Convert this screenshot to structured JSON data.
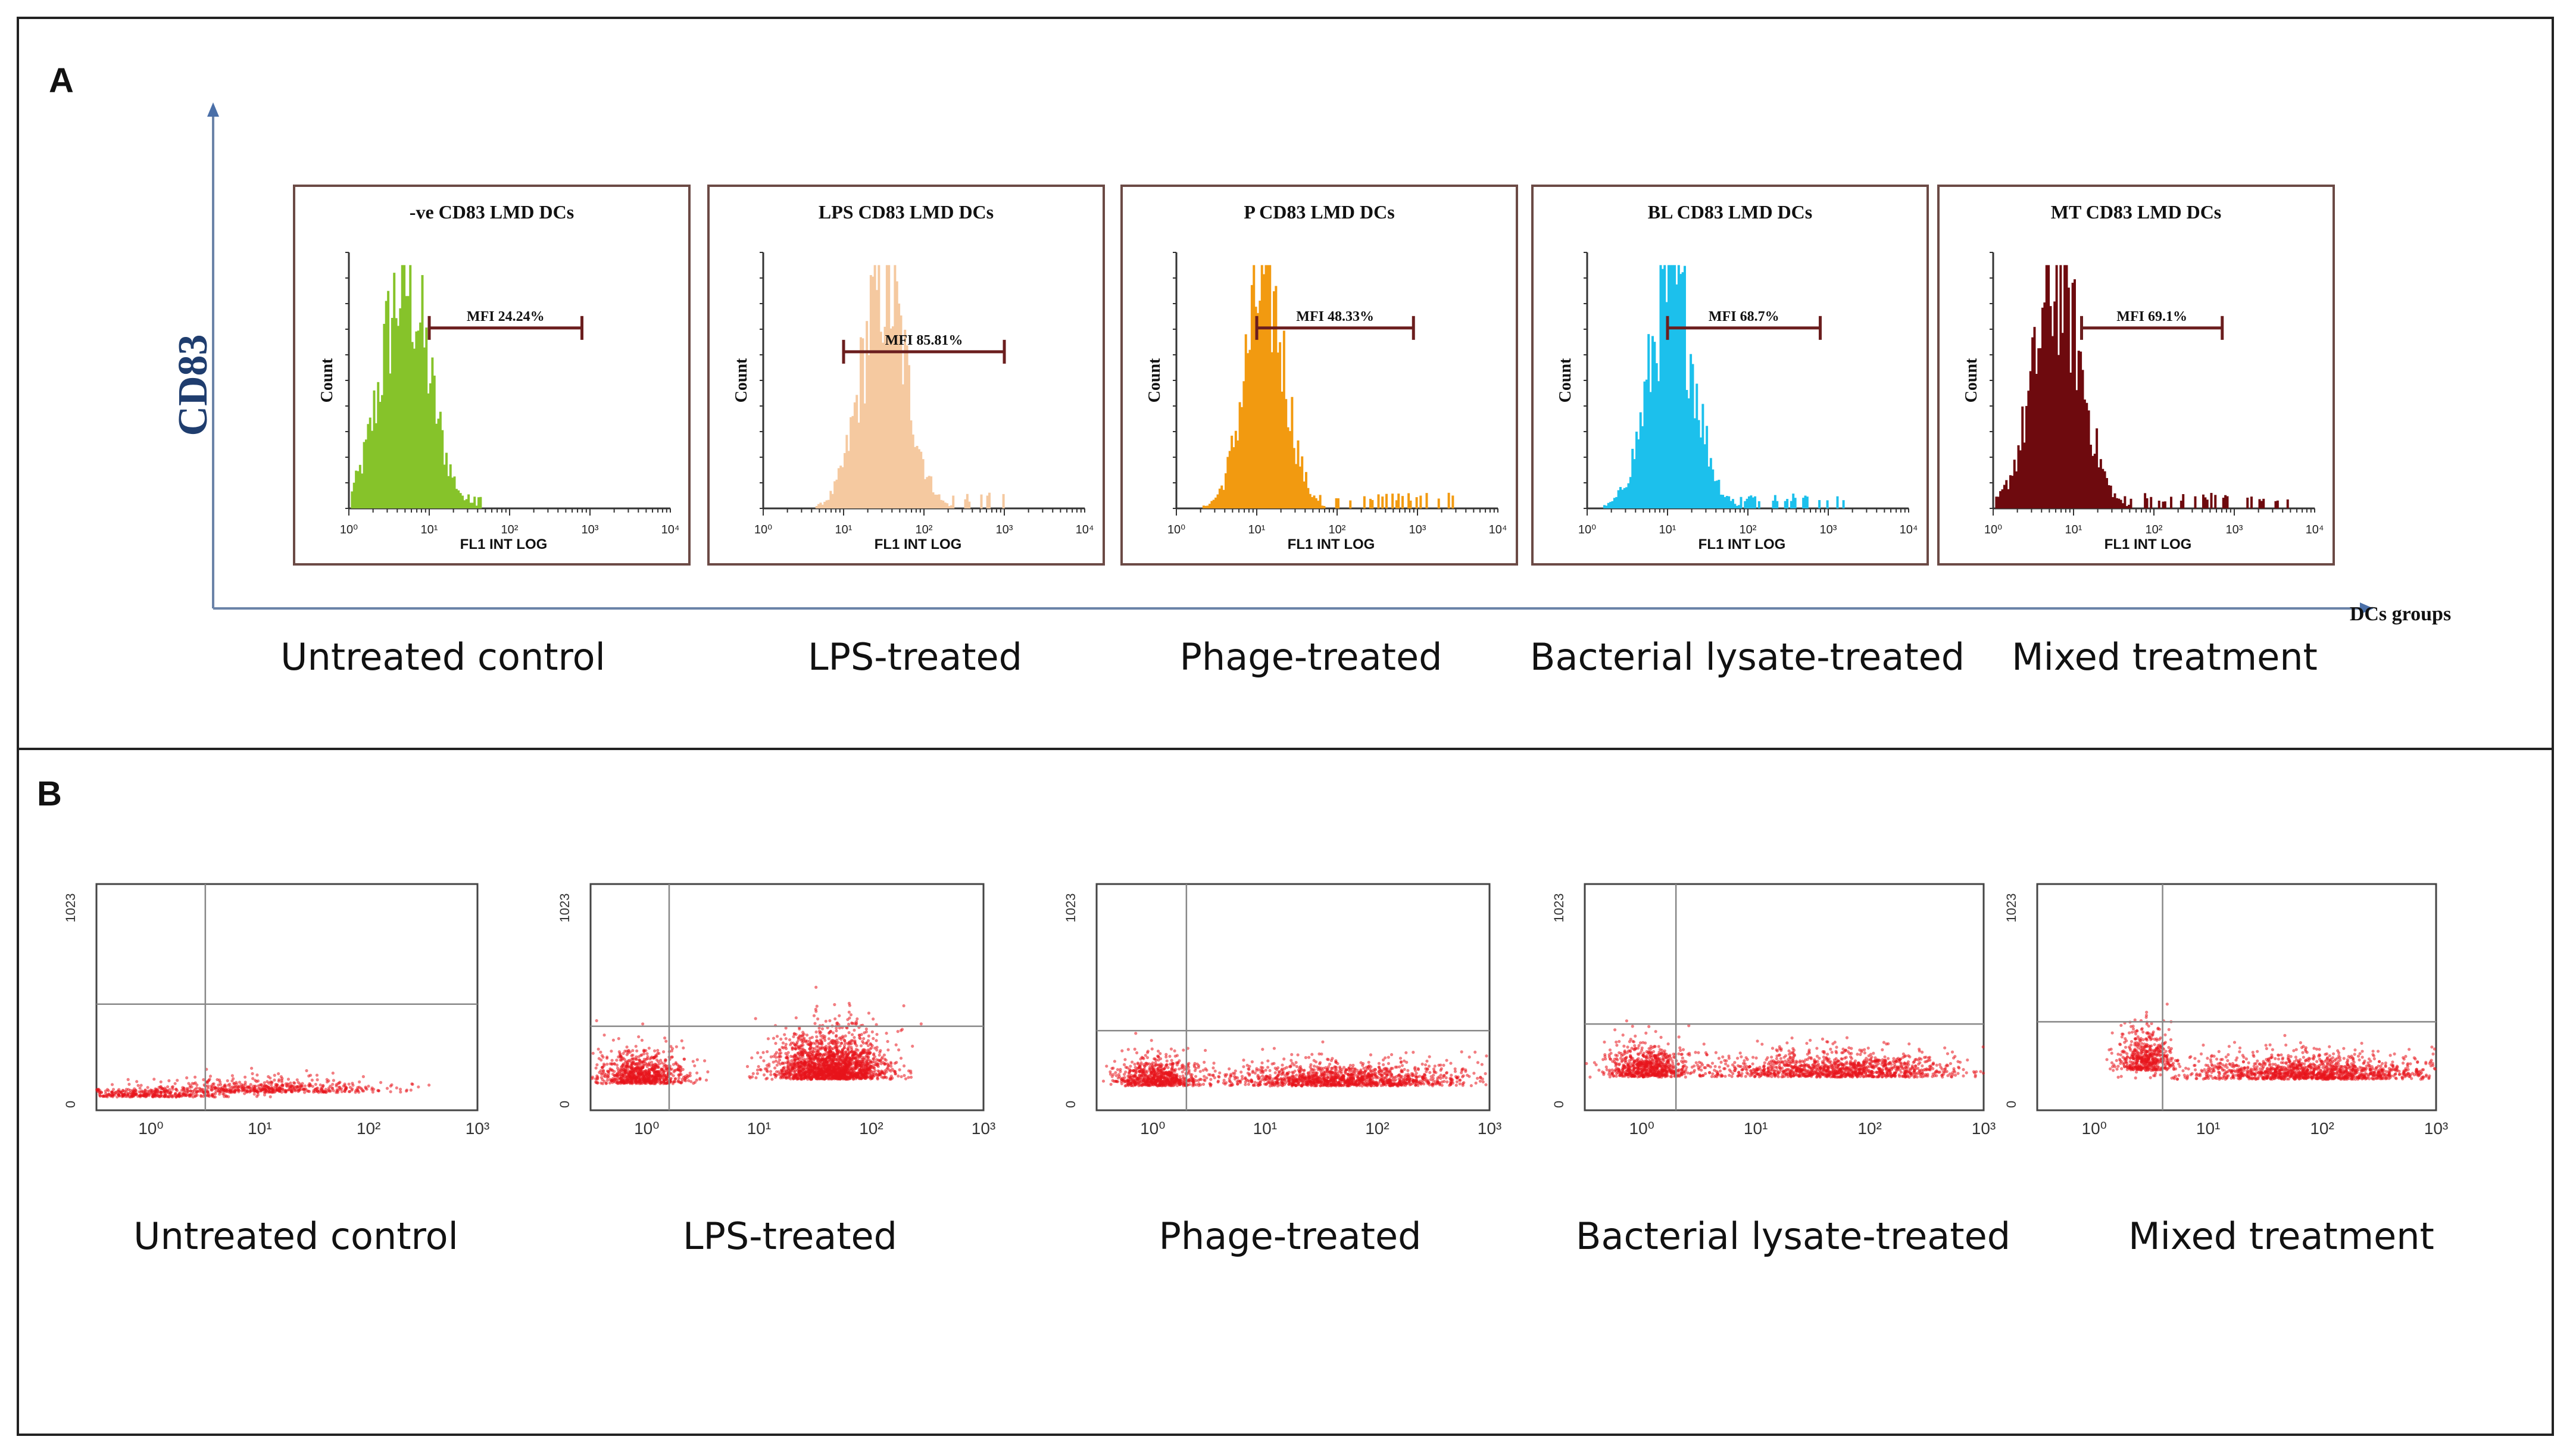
{
  "panel_a": {
    "letter": "A",
    "y_axis_label": "CD83",
    "x_axis_label": "DCs groups",
    "group_labels": [
      "Untreated control",
      "LPS-treated",
      "Phage-treated",
      "Bacterial lysate-treated",
      "Mixed treatment"
    ]
  },
  "panel_b": {
    "letter": "B",
    "group_labels": [
      "Untreated control",
      "LPS-treated",
      "Phage-treated",
      "Bacterial lysate-treated",
      "Mixed treatment"
    ]
  },
  "chart_data": [
    {
      "type": "histogram",
      "panel": "A",
      "x_axis_label": "FL1 INT LOG",
      "y_axis_label": "Count",
      "x_ticks": [
        "10⁰",
        "10¹",
        "10²",
        "10³",
        "10⁴"
      ],
      "xlim_log10": [
        0,
        4
      ],
      "histograms": [
        {
          "title": "-ve CD83 LMD DCs",
          "mfi_label": "MFI 24.24%",
          "mfi": 24.24,
          "color": "#86c32a",
          "gate_log10": [
            1.0,
            2.9
          ],
          "peak_log10": 0.7,
          "spread": 0.3,
          "tail_to_log10": 1.9
        },
        {
          "title": "LPS CD83 LMD DCs",
          "mfi_label": "MFI 85.81%",
          "mfi": 85.81,
          "color": "#f5c9a0",
          "gate_log10": [
            1.0,
            3.0
          ],
          "peak_log10": 1.5,
          "spread": 0.28,
          "tail_to_log10": 3.0
        },
        {
          "title": "P CD83 LMD DCs",
          "mfi_label": "MFI 48.33%",
          "mfi": 48.33,
          "color": "#f29a10",
          "gate_log10": [
            1.0,
            2.95
          ],
          "peak_log10": 1.1,
          "spread": 0.25,
          "tail_to_log10": 3.5
        },
        {
          "title": "BL CD83 LMD DCs",
          "mfi_label": "MFI 68.7%",
          "mfi": 68.7,
          "color": "#1cc0ec",
          "gate_log10": [
            1.0,
            2.9
          ],
          "peak_log10": 1.05,
          "spread": 0.28,
          "tail_to_log10": 3.3
        },
        {
          "title": "MT CD83 LMD DCs",
          "mfi_label": "MFI 69.1%",
          "mfi": 69.1,
          "color": "#6e0a0e",
          "gate_log10": [
            1.1,
            2.85
          ],
          "peak_log10": 0.8,
          "spread": 0.3,
          "tail_to_log10": 3.7
        }
      ]
    },
    {
      "type": "scatter",
      "panel": "B",
      "x_ticks": [
        "10⁰",
        "10¹",
        "10²",
        "10³"
      ],
      "y_ticks": [
        "0",
        "1023"
      ],
      "xlim_log10": [
        -0.5,
        3
      ],
      "ylim": [
        0,
        1023
      ],
      "point_color": "#e8141c",
      "plots": [
        {
          "quadrant_x_log10": 0.5,
          "quadrant_y": 480,
          "clusters": [
            {
              "cx": -0.1,
              "cy": 60,
              "sx": 0.45,
              "sy": 25,
              "n": 400
            },
            {
              "cx": 1.1,
              "cy": 80,
              "sx": 0.5,
              "sy": 35,
              "n": 500
            }
          ]
        },
        {
          "quadrant_x_log10": 0.2,
          "quadrant_y": 380,
          "clusters": [
            {
              "cx": -0.05,
              "cy": 120,
              "sx": 0.2,
              "sy": 80,
              "n": 800
            },
            {
              "cx": 1.65,
              "cy": 140,
              "sx": 0.25,
              "sy": 110,
              "n": 1900
            }
          ]
        },
        {
          "quadrant_x_log10": 0.3,
          "quadrant_y": 360,
          "clusters": [
            {
              "cx": 0.05,
              "cy": 110,
              "sx": 0.18,
              "sy": 70,
              "n": 700
            },
            {
              "cx": 1.7,
              "cy": 110,
              "sx": 0.55,
              "sy": 60,
              "n": 1300
            }
          ]
        },
        {
          "quadrant_x_log10": 0.3,
          "quadrant_y": 390,
          "clusters": [
            {
              "cx": 0.05,
              "cy": 150,
              "sx": 0.18,
              "sy": 80,
              "n": 700
            },
            {
              "cx": 1.7,
              "cy": 150,
              "sx": 0.55,
              "sy": 65,
              "n": 1200
            }
          ]
        },
        {
          "quadrant_x_log10": 0.6,
          "quadrant_y": 400,
          "clusters": [
            {
              "cx": 0.45,
              "cy": 180,
              "sx": 0.12,
              "sy": 110,
              "n": 500
            },
            {
              "cx": 1.9,
              "cy": 140,
              "sx": 0.55,
              "sy": 60,
              "n": 1300
            }
          ]
        }
      ]
    }
  ]
}
